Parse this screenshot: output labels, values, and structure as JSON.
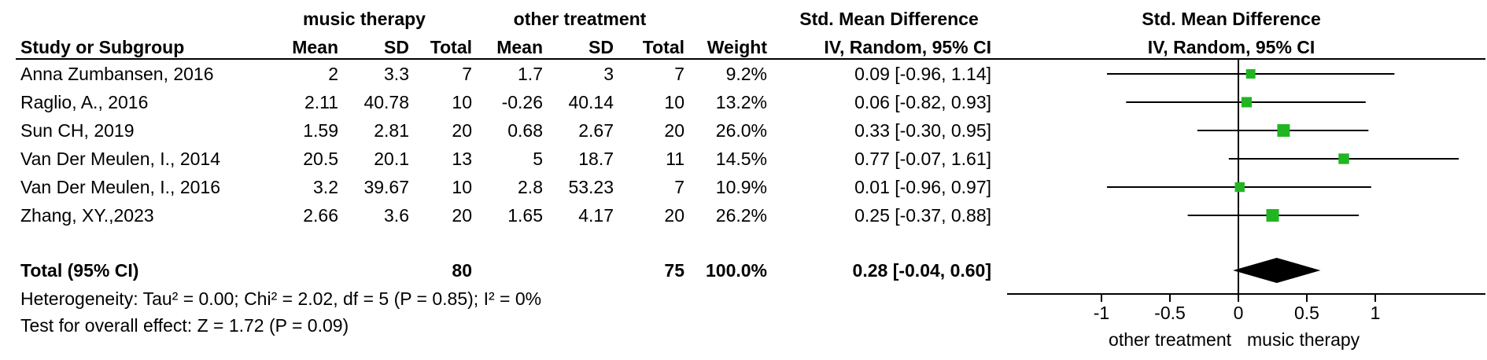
{
  "group_headers": {
    "music_therapy": "music therapy",
    "other_treatment": "other treatment",
    "smd_table": "Std. Mean Difference",
    "smd_plot": "Std. Mean Difference"
  },
  "column_headers": {
    "study": "Study or Subgroup",
    "mean1": "Mean",
    "sd1": "SD",
    "total1": "Total",
    "mean2": "Mean",
    "sd2": "SD",
    "total2": "Total",
    "weight": "Weight",
    "ci_table": "IV, Random, 95% CI",
    "ci_plot": "IV, Random, 95% CI"
  },
  "studies": [
    {
      "name": "Anna Zumbansen, 2016",
      "mean1": "2",
      "sd1": "3.3",
      "total1": "7",
      "mean2": "1.7",
      "sd2": "3",
      "total2": "7",
      "weight": "9.2%",
      "ci_text": "0.09 [-0.96, 1.14]"
    },
    {
      "name": "Raglio, A., 2016",
      "mean1": "2.11",
      "sd1": "40.78",
      "total1": "10",
      "mean2": "-0.26",
      "sd2": "40.14",
      "total2": "10",
      "weight": "13.2%",
      "ci_text": "0.06 [-0.82, 0.93]"
    },
    {
      "name": "Sun CH, 2019",
      "mean1": "1.59",
      "sd1": "2.81",
      "total1": "20",
      "mean2": "0.68",
      "sd2": "2.67",
      "total2": "20",
      "weight": "26.0%",
      "ci_text": "0.33 [-0.30, 0.95]"
    },
    {
      "name": "Van Der Meulen, I., 2014",
      "mean1": "20.5",
      "sd1": "20.1",
      "total1": "13",
      "mean2": "5",
      "sd2": "18.7",
      "total2": "11",
      "weight": "14.5%",
      "ci_text": "0.77 [-0.07, 1.61]"
    },
    {
      "name": "Van Der Meulen, I., 2016",
      "mean1": "3.2",
      "sd1": "39.67",
      "total1": "10",
      "mean2": "2.8",
      "sd2": "53.23",
      "total2": "7",
      "weight": "10.9%",
      "ci_text": "0.01 [-0.96, 0.97]"
    },
    {
      "name": "Zhang, XY.,2023",
      "mean1": "2.66",
      "sd1": "3.6",
      "total1": "20",
      "mean2": "1.65",
      "sd2": "4.17",
      "total2": "20",
      "weight": "26.2%",
      "ci_text": "0.25 [-0.37, 0.88]"
    }
  ],
  "total": {
    "label": "Total (95% CI)",
    "total1": "80",
    "total2": "75",
    "weight": "100.0%",
    "ci_text": "0.28 [-0.04, 0.60]"
  },
  "footer": {
    "heterogeneity": "Heterogeneity: Tau² = 0.00; Chi² = 2.02, df = 5 (P = 0.85); I² = 0%",
    "overall_effect": "Test for overall effect: Z = 1.72 (P = 0.09)"
  },
  "axis_labels": {
    "left": "other treatment",
    "right": "music therapy"
  },
  "chart_data": {
    "type": "forest",
    "x_ticks": [
      -1,
      -0.5,
      0,
      0.5,
      1
    ],
    "x_tick_labels": [
      "-1",
      "-0.5",
      "0",
      "0.5",
      "1"
    ],
    "studies": [
      {
        "name": "Anna Zumbansen, 2016",
        "estimate": 0.09,
        "ci_low": -0.96,
        "ci_high": 1.14,
        "weight": 9.2
      },
      {
        "name": "Raglio, A., 2016",
        "estimate": 0.06,
        "ci_low": -0.82,
        "ci_high": 0.93,
        "weight": 13.2
      },
      {
        "name": "Sun CH, 2019",
        "estimate": 0.33,
        "ci_low": -0.3,
        "ci_high": 0.95,
        "weight": 26.0
      },
      {
        "name": "Van Der Meulen, I., 2014",
        "estimate": 0.77,
        "ci_low": -0.07,
        "ci_high": 1.61,
        "weight": 14.5
      },
      {
        "name": "Van Der Meulen, I., 2016",
        "estimate": 0.01,
        "ci_low": -0.96,
        "ci_high": 0.97,
        "weight": 10.9
      },
      {
        "name": "Zhang, XY.,2023",
        "estimate": 0.25,
        "ci_low": -0.37,
        "ci_high": 0.88,
        "weight": 26.2
      }
    ],
    "pooled": {
      "estimate": 0.28,
      "ci_low": -0.04,
      "ci_high": 0.6
    },
    "marker_color": "#22b522"
  }
}
